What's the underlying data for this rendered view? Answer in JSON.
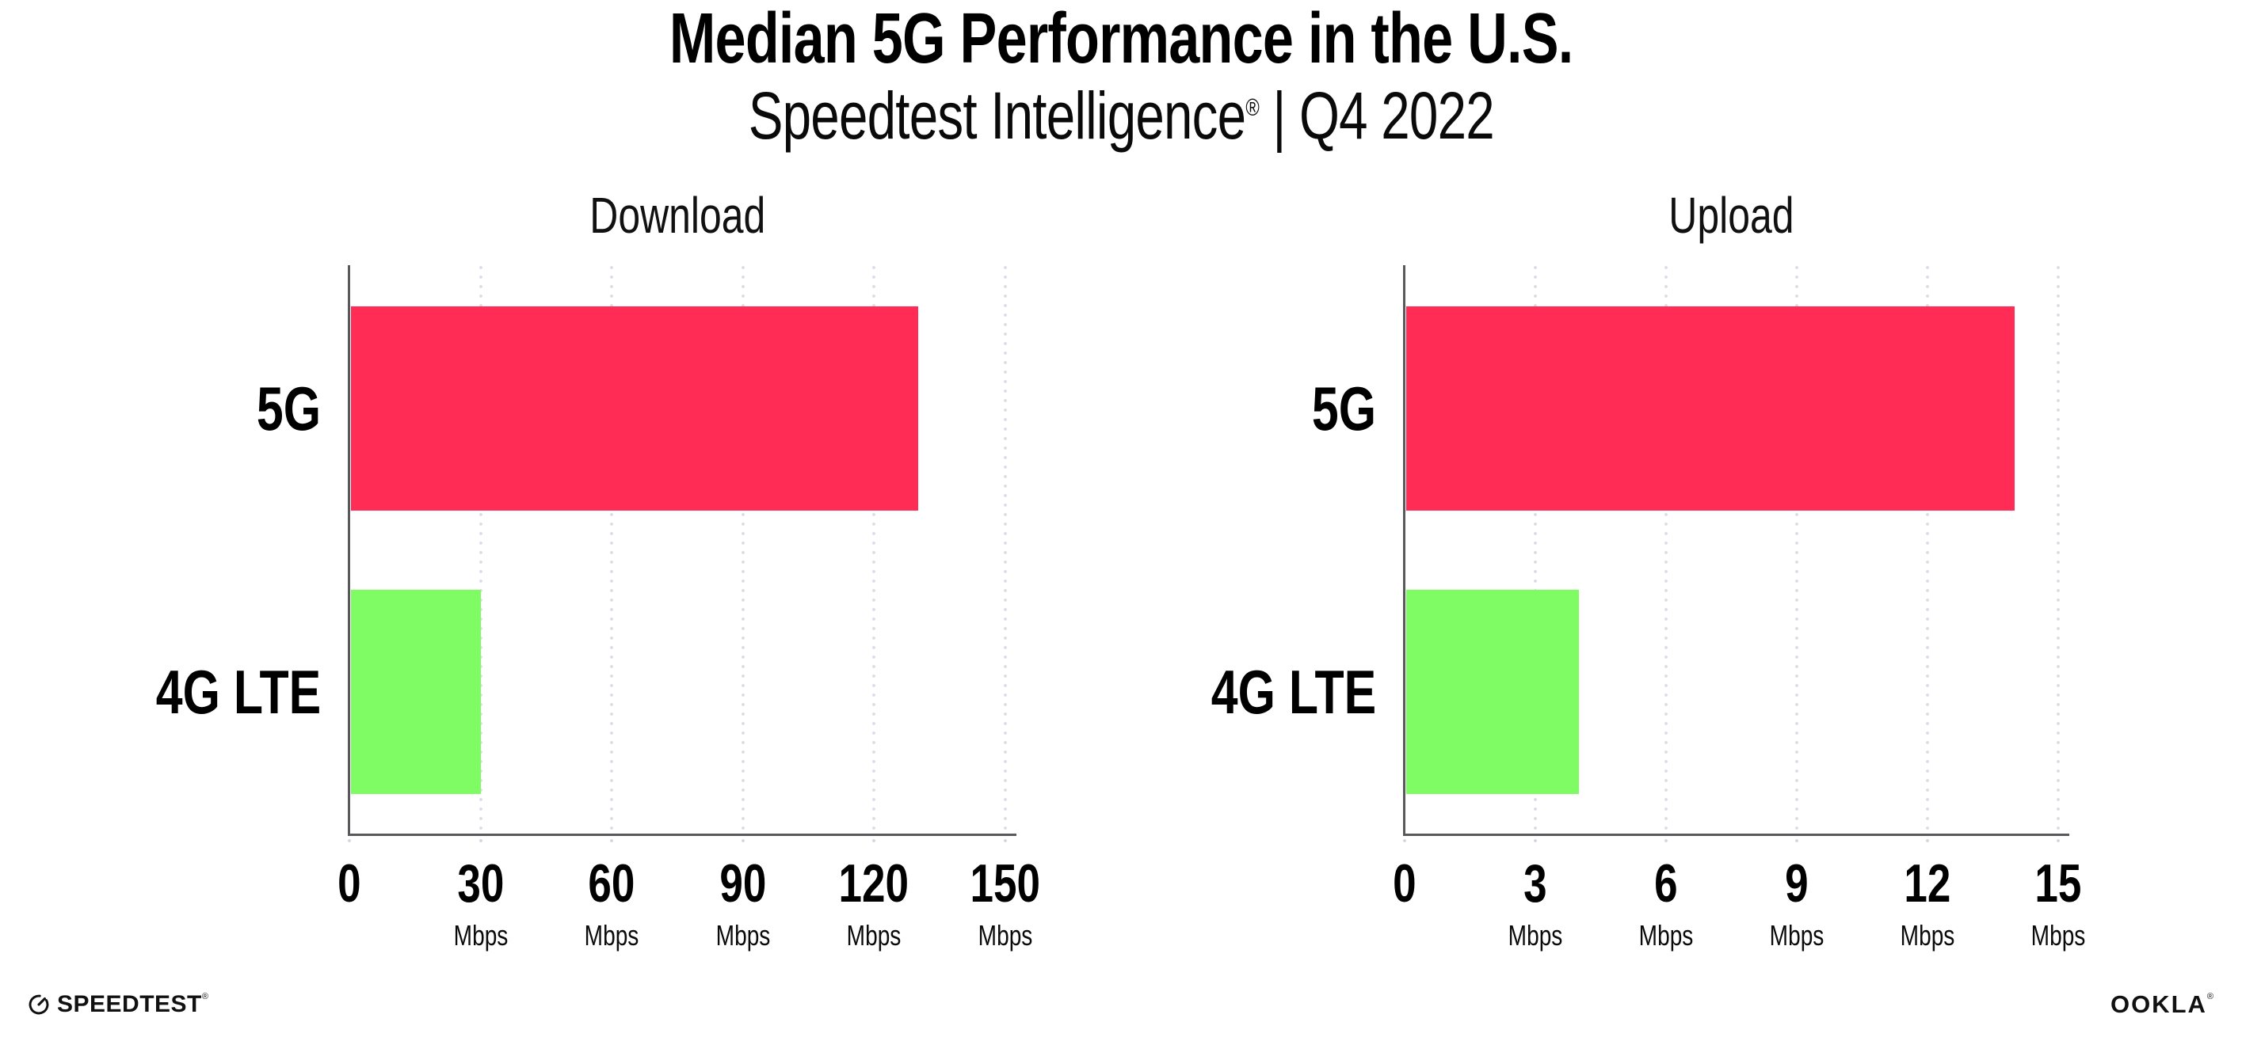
{
  "header": {
    "title": "Median 5G Performance in the U.S.",
    "subtitle_brand": "Speedtest Intelligence",
    "subtitle_mark": "®",
    "subtitle_rest": " | Q4 2022"
  },
  "colors": {
    "bar_5g": "#ff2d55",
    "bar_4g_lte": "#7ffb63",
    "axis_line": "#59595c",
    "grid_dots": "#dcdce8",
    "text": "#000000",
    "background": "#ffffff"
  },
  "chart_data": [
    {
      "type": "bar",
      "orientation": "horizontal",
      "title": "Download",
      "categories": [
        "5G",
        "4G LTE"
      ],
      "values": [
        130,
        30
      ],
      "unit": "Mbps",
      "xlim": [
        0,
        150
      ],
      "xticks": [
        0,
        30,
        60,
        90,
        120,
        150
      ],
      "grid": "dotted vertical gridlines at ticks",
      "legend": "none",
      "bar_colors": [
        "#ff2d55",
        "#7ffb63"
      ]
    },
    {
      "type": "bar",
      "orientation": "horizontal",
      "title": "Upload",
      "categories": [
        "5G",
        "4G LTE"
      ],
      "values": [
        14,
        4
      ],
      "unit": "Mbps",
      "xlim": [
        0,
        15
      ],
      "xticks": [
        0,
        3,
        6,
        9,
        12,
        15
      ],
      "grid": "dotted vertical gridlines at ticks",
      "legend": "none",
      "bar_colors": [
        "#ff2d55",
        "#7ffb63"
      ]
    }
  ],
  "footer": {
    "speedtest_label": "SPEEDTEST",
    "speedtest_mark": "®",
    "speedtest_icon": "speedometer-gauge-icon",
    "ookla_label": "OOKLA",
    "ookla_mark": "®"
  }
}
